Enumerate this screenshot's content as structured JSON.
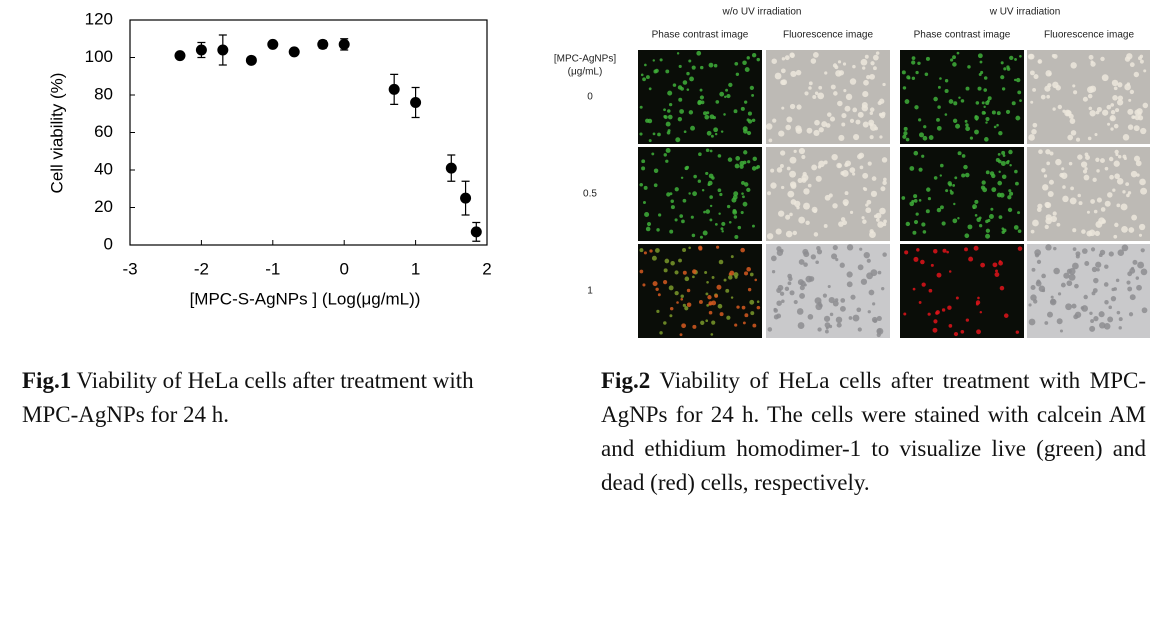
{
  "chart_data": {
    "type": "scatter",
    "x_label": "[MPC-S-AgNPs ] (Log(μg/mL))",
    "y_label": "Cell viability (%)",
    "x": [
      -2.3,
      -2.0,
      -1.7,
      -1.3,
      -1.0,
      -0.7,
      -0.3,
      0.0,
      0.7,
      1.0,
      1.5,
      1.7,
      1.85
    ],
    "values": [
      101,
      104,
      104,
      98.5,
      107,
      103,
      107,
      107,
      83,
      76,
      41,
      25,
      7
    ],
    "errors": [
      1,
      4,
      8,
      1,
      1,
      1,
      2,
      3,
      8,
      8,
      7,
      9,
      5
    ],
    "color": "#000000",
    "xlim": [
      -3,
      2
    ],
    "xticks": [
      -3,
      -2,
      -1,
      0,
      1,
      2
    ],
    "ylim": [
      0,
      120
    ],
    "yticks": [
      0,
      20,
      40,
      60,
      80,
      100,
      120
    ],
    "grid": false
  },
  "figure2": {
    "groups": [
      "w/o UV irradiation",
      "w UV irradiation"
    ],
    "columns": [
      "Phase contrast image",
      "Fluorescence image",
      "Phase contrast image",
      "Fluorescence image"
    ],
    "row_header": [
      "[MPC-AgNPs]",
      "(μg/mL)"
    ],
    "rows": [
      "0",
      "0.5",
      "1"
    ]
  },
  "captions": [
    {
      "label": "Fig.1",
      "text": "Viability of HeLa cells after treatment with MPC-AgNPs for 24 h."
    },
    {
      "label": "Fig.2",
      "text": "Viability of HeLa cells after treatment with MPC-AgNPs for 24 h. The cells were stained with calcein AM and ethidium homodimer-1 to visualize live (green) and dead (red) cells, respectively."
    }
  ]
}
